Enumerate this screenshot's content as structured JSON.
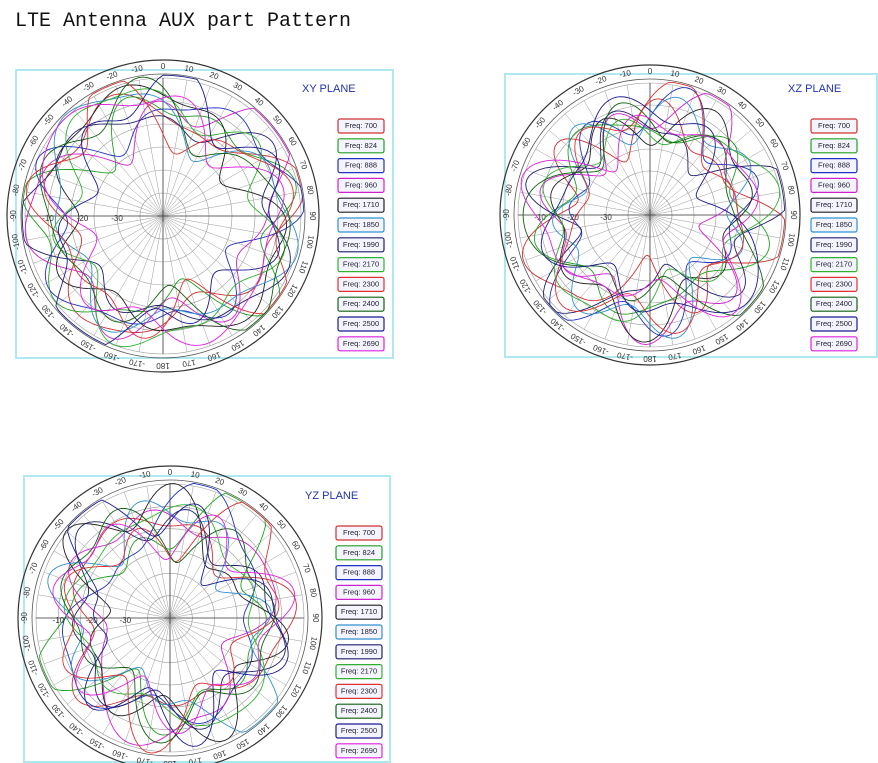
{
  "title": "LTE Antenna AUX part Pattern",
  "panels": [
    {
      "plane": "XY PLANE",
      "angles": [
        "0",
        "10",
        "20",
        "30",
        "40",
        "50",
        "60",
        "70",
        "80",
        "90",
        "100",
        "110",
        "120",
        "130",
        "140",
        "150",
        "160",
        "170",
        "180",
        "-170",
        "-160",
        "-150",
        "-140",
        "-130",
        "-120",
        "-110",
        "-100",
        "-90",
        "-80",
        "-70",
        "-60",
        "-50",
        "-40",
        "-30",
        "-20",
        "-10"
      ],
      "rings": [
        "-10",
        "-20",
        "-30"
      ],
      "legend": [
        {
          "label": "Freq: 700",
          "color": "#d03030"
        },
        {
          "label": "Freq: 824",
          "color": "#20a020"
        },
        {
          "label": "Freq: 888",
          "color": "#2030c0"
        },
        {
          "label": "Freq: 960",
          "color": "#d020d0"
        },
        {
          "label": "Freq: 1710",
          "color": "#202020"
        },
        {
          "label": "Freq: 1850",
          "color": "#3090d0"
        },
        {
          "label": "Freq: 1990",
          "color": "#202070"
        },
        {
          "label": "Freq: 2170",
          "color": "#30b030"
        },
        {
          "label": "Freq: 2300",
          "color": "#e03030"
        },
        {
          "label": "Freq: 2400",
          "color": "#106010"
        },
        {
          "label": "Freq: 2500",
          "color": "#1a1a90"
        },
        {
          "label": "Freq: 2690",
          "color": "#e020e0"
        }
      ]
    },
    {
      "plane": "XZ PLANE",
      "angles": [
        "0",
        "10",
        "20",
        "30",
        "40",
        "50",
        "60",
        "70",
        "80",
        "90",
        "100",
        "110",
        "120",
        "130",
        "140",
        "150",
        "160",
        "170",
        "180",
        "-170",
        "-160",
        "-150",
        "-140",
        "-130",
        "-120",
        "-110",
        "-100",
        "-90",
        "-80",
        "-70",
        "-60",
        "-50",
        "-40",
        "-30",
        "-20",
        "-10"
      ],
      "rings": [
        "-10",
        "-20",
        "-30"
      ],
      "legend": [
        {
          "label": "Freq: 700",
          "color": "#d03030"
        },
        {
          "label": "Freq: 824",
          "color": "#20a020"
        },
        {
          "label": "Freq: 888",
          "color": "#2030c0"
        },
        {
          "label": "Freq: 960",
          "color": "#d020d0"
        },
        {
          "label": "Freq: 1710",
          "color": "#202020"
        },
        {
          "label": "Freq: 1850",
          "color": "#3090d0"
        },
        {
          "label": "Freq: 1990",
          "color": "#202070"
        },
        {
          "label": "Freq: 2170",
          "color": "#30b030"
        },
        {
          "label": "Freq: 2300",
          "color": "#e03030"
        },
        {
          "label": "Freq: 2400",
          "color": "#106010"
        },
        {
          "label": "Freq: 2500",
          "color": "#1a1a90"
        },
        {
          "label": "Freq: 2690",
          "color": "#e020e0"
        }
      ]
    },
    {
      "plane": "YZ PLANE",
      "angles": [
        "0",
        "10",
        "20",
        "30",
        "40",
        "50",
        "60",
        "70",
        "80",
        "90",
        "100",
        "110",
        "120",
        "130",
        "140",
        "150",
        "160",
        "170",
        "180",
        "-170",
        "-160",
        "-150",
        "-140",
        "-130",
        "-120",
        "-110",
        "-100",
        "-90",
        "-80",
        "-70",
        "-60",
        "-50",
        "-40",
        "-30",
        "-20",
        "-10"
      ],
      "rings": [
        "-10",
        "-20",
        "-30"
      ],
      "legend": [
        {
          "label": "Freq: 700",
          "color": "#d03030"
        },
        {
          "label": "Freq: 824",
          "color": "#20a020"
        },
        {
          "label": "Freq: 888",
          "color": "#2030c0"
        },
        {
          "label": "Freq: 960",
          "color": "#d020d0"
        },
        {
          "label": "Freq: 1710",
          "color": "#202020"
        },
        {
          "label": "Freq: 1850",
          "color": "#3090d0"
        },
        {
          "label": "Freq: 1990",
          "color": "#202070"
        },
        {
          "label": "Freq: 2170",
          "color": "#30b030"
        },
        {
          "label": "Freq: 2300",
          "color": "#e03030"
        },
        {
          "label": "Freq: 2400",
          "color": "#106010"
        },
        {
          "label": "Freq: 2500",
          "color": "#1a1a90"
        },
        {
          "label": "Freq: 2690",
          "color": "#e020e0"
        }
      ]
    }
  ]
}
